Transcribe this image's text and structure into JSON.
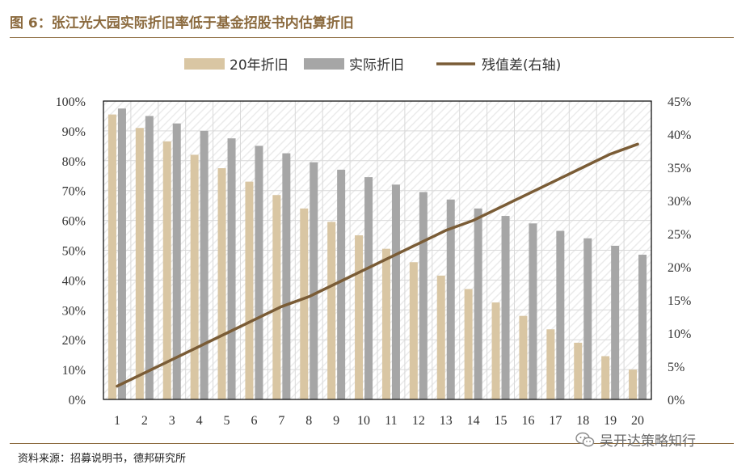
{
  "header": {
    "title": "图 6：张江光大园实际折旧率低于基金招股书内估算折旧"
  },
  "footer": {
    "source": "资料来源：招募说明书，德邦研究所",
    "watermark": "吴开达策略知行"
  },
  "colors": {
    "accent": "#8B6A3E",
    "series_20yr": "#D9C6A3",
    "series_actual": "#A6A6A6",
    "series_line": "#7A5C36"
  },
  "chart_data": {
    "type": "bar",
    "title": "张江光大园实际折旧率低于基金招股书内估算折旧",
    "categories": [
      "1",
      "2",
      "3",
      "4",
      "5",
      "6",
      "7",
      "8",
      "9",
      "10",
      "11",
      "12",
      "13",
      "14",
      "15",
      "16",
      "17",
      "18",
      "19",
      "20"
    ],
    "series": [
      {
        "name": "20年折旧",
        "type": "bar",
        "axis": "left",
        "values": [
          95.5,
          91,
          86.5,
          82,
          77.5,
          73,
          68.5,
          64,
          59.5,
          55,
          50.5,
          46,
          41.5,
          37,
          32.5,
          28,
          23.5,
          19,
          14.5,
          10
        ]
      },
      {
        "name": "实际折旧",
        "type": "bar",
        "axis": "left",
        "values": [
          97.5,
          95,
          92.5,
          90,
          87.5,
          85,
          82.5,
          79.5,
          77,
          74.5,
          72,
          69.5,
          67,
          64,
          61.5,
          59,
          56.5,
          54,
          51.5,
          48.5
        ]
      },
      {
        "name": "残值差(右轴)",
        "type": "line",
        "axis": "right",
        "values": [
          2,
          4,
          6,
          8,
          10,
          12,
          14,
          15.5,
          17.5,
          19.5,
          21.5,
          23.5,
          25.5,
          27,
          29,
          31,
          33,
          35,
          37,
          38.5
        ]
      }
    ],
    "left_axis": {
      "min": 0,
      "max": 100,
      "step": 10,
      "tick_labels": [
        "0%",
        "10%",
        "20%",
        "30%",
        "40%",
        "50%",
        "60%",
        "70%",
        "80%",
        "90%",
        "100%"
      ]
    },
    "right_axis": {
      "min": 0,
      "max": 45,
      "step": 5,
      "tick_labels": [
        "0%",
        "5%",
        "10%",
        "15%",
        "20%",
        "25%",
        "30%",
        "35%",
        "40%",
        "45%"
      ]
    },
    "legend": {
      "placement": "top-center",
      "entries": [
        "20年折旧",
        "实际折旧",
        "残值差(右轴)"
      ]
    },
    "grid": true
  }
}
